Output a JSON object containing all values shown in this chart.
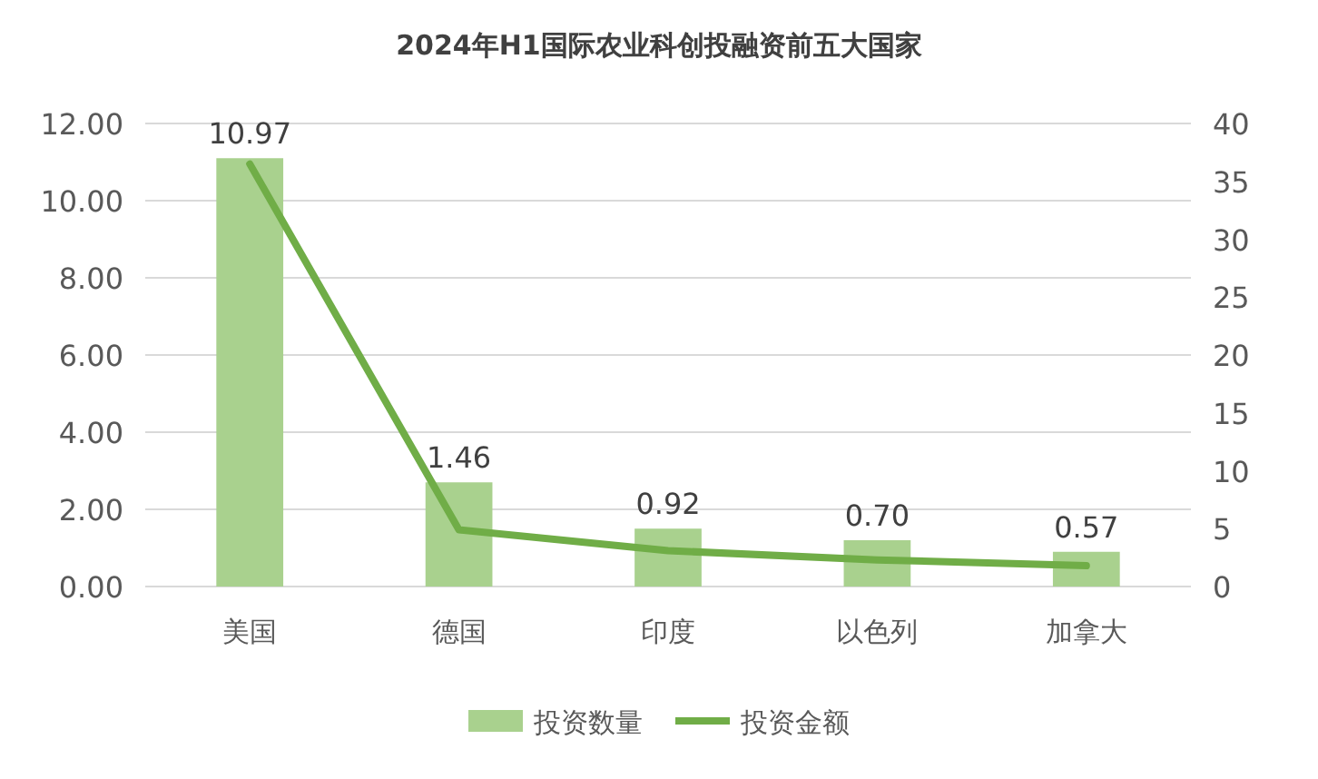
{
  "chart_data": {
    "type": "bar",
    "title": "2024年H1国际农业科创投融资前五大国家",
    "categories": [
      "美国",
      "德国",
      "印度",
      "以色列",
      "加拿大"
    ],
    "series": [
      {
        "name": "投资数量",
        "color": "#a9d18e",
        "values": [
          11.1,
          2.7,
          1.5,
          1.2,
          0.9
        ]
      },
      {
        "name": "投资金额",
        "type": "line",
        "axis": "y2",
        "color": "#70ad47",
        "values": [
          36.5,
          4.9,
          3.1,
          2.3,
          1.8
        ]
      }
    ],
    "ylim": [
      0,
      12
    ],
    "yticks": [
      {
        "value": 0,
        "label": "0.00"
      },
      {
        "value": 2,
        "label": "2.00"
      },
      {
        "value": 4,
        "label": "4.00"
      },
      {
        "value": 6,
        "label": "6.00"
      },
      {
        "value": 8,
        "label": "8.00"
      },
      {
        "value": 10,
        "label": "10.00"
      },
      {
        "value": 12,
        "label": "12.00"
      }
    ],
    "y2lim": [
      0,
      40
    ],
    "y2ticks": [
      0,
      5,
      10,
      15,
      20,
      25,
      30,
      35,
      40
    ],
    "annotations": [
      {
        "text": "10.97",
        "x": "美国",
        "y": 11.1
      },
      {
        "text": "1.46",
        "x": "德国",
        "y": 2.7
      },
      {
        "text": "0.92",
        "x": "印度",
        "y": 1.5
      },
      {
        "text": "0.70",
        "x": "以色列",
        "y": 1.2
      },
      {
        "text": "0.57",
        "x": "加拿大",
        "y": 0.9
      }
    ],
    "grid": "y",
    "legend": "bottom",
    "marker": "none"
  }
}
